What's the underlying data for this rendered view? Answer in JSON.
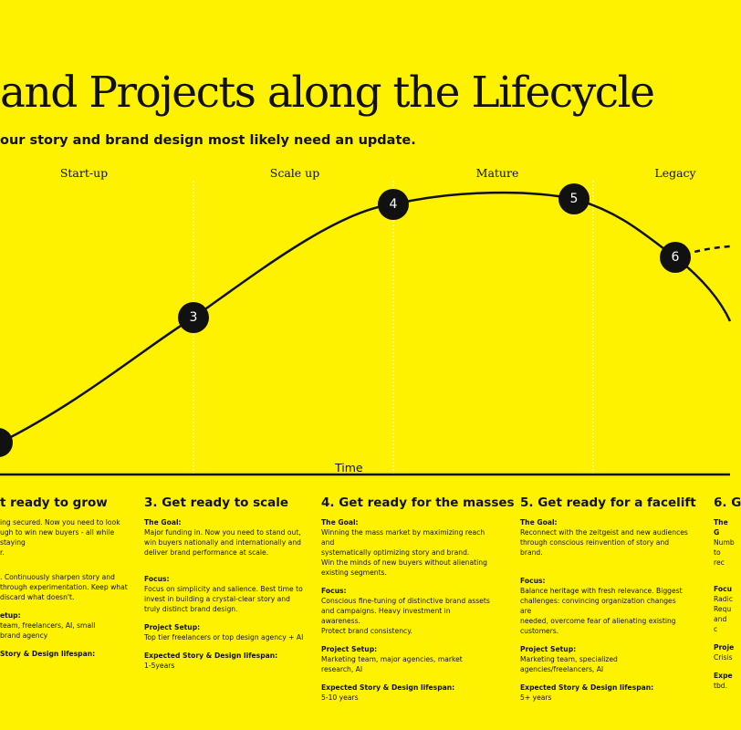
{
  "header": {
    "title": "and Projects along the Lifecycle",
    "subtitle": "our story and brand design most likely need an update."
  },
  "phases": [
    "Start-up",
    "Scale up",
    "Mature",
    "Legacy"
  ],
  "axis": {
    "x_label": "Time"
  },
  "nodes": [
    "3",
    "4",
    "5",
    "6"
  ],
  "colors": {
    "background": "#fff200",
    "ink": "#111111",
    "node_text": "#ffffff"
  },
  "columns": [
    {
      "title": "t ready to grow",
      "goal_label": "",
      "goal": "ing secured.  Now you need to look\nugh to win new buyers - all while staying\nr.",
      "focus_label": "",
      "focus": ". Continuously sharpen story and\nthrough experimentation. Keep what\ndiscard what doesn't.",
      "setup_label": "etup:",
      "setup": "team, freelancers, AI, small\nbrand agency",
      "lifespan_label": "Story & Design lifespan:",
      "lifespan": ""
    },
    {
      "title": "3. Get ready to scale",
      "goal_label": "The Goal:",
      "goal": "Major funding in. Now you need to stand out,\nwin buyers nationally and internationally and\ndeliver brand performance at scale.",
      "focus_label": "Focus:",
      "focus": "Focus on simplicity and salience. Best time to\ninvest in building a crystal-clear story and\ntruly distinct brand design.",
      "setup_label": "Project Setup:",
      "setup": "Top tier freelancers or top design agency + AI",
      "lifespan_label": "Expected Story & Design lifespan:",
      "lifespan": "1-5years"
    },
    {
      "title": "4. Get ready for the masses",
      "goal_label": "The Goal:",
      "goal": "Winning the mass market by maximizing reach and\nsystematically optimizing story and brand.\nWin the minds of new buyers without alienating\nexisting segments.",
      "focus_label": "Focus:",
      "focus": "Conscious fine-tuning of distinctive brand assets\nand campaigns. Heavy investment in awareness.\nProtect brand consistency.",
      "setup_label": "Project Setup:",
      "setup": "Marketing team, major agencies, market research, AI",
      "lifespan_label": "Expected Story & Design lifespan:",
      "lifespan": "5-10 years"
    },
    {
      "title": "5. Get ready for a facelift",
      "goal_label": "The Goal:",
      "goal": "Reconnect with the zeitgeist and new audiences\nthrough conscious reinvention of story and brand.",
      "focus_label": "Focus:",
      "focus": "Balance heritage with fresh relevance. Biggest\nchallenges: convincing organization changes are\nneeded, overcome fear of alienating existing\ncustomers.",
      "setup_label": "Project Setup:",
      "setup": "Marketing team, specialized agencies/freelancers, AI",
      "lifespan_label": "Expected Story & Design lifespan:",
      "lifespan": "5+ years"
    },
    {
      "title": "6. G",
      "goal_label": "The G",
      "goal": "Numb\nto rec",
      "focus_label": "Focu",
      "focus": "Radic\nRequ\nand c",
      "setup_label": "Proje",
      "setup": "Crisis",
      "lifespan_label": "Expe",
      "lifespan": "tbd."
    }
  ]
}
